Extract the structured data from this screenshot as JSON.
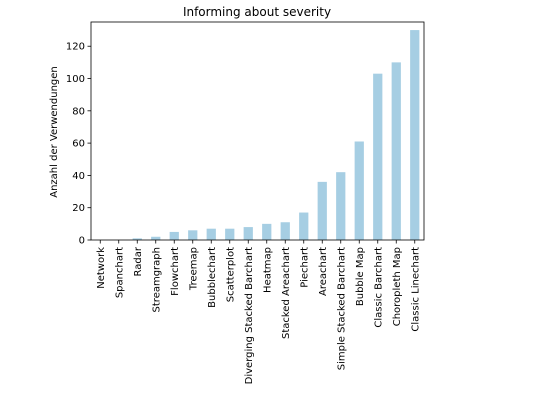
{
  "chart_data": {
    "type": "bar",
    "title": "Informing about severity",
    "xlabel": "",
    "ylabel": "Anzahl der Verwendungen",
    "ylim": [
      0,
      135
    ],
    "yticks": [
      0,
      20,
      40,
      60,
      80,
      100,
      120
    ],
    "grid": false,
    "bar_color": "#a6cee3",
    "categories": [
      "Network",
      "Spanchart",
      "Radar",
      "Streamgraph",
      "Flowchart",
      "Treemap",
      "Bubblechart",
      "Scatterplot",
      "Diverging Stacked Barchart",
      "Heatmap",
      "Stacked Areachart",
      "Piechart",
      "Areachart",
      "Simple Stacked Barchart",
      "Bubble Map",
      "Classic Barchart",
      "Choropleth Map",
      "Classic Linechart"
    ],
    "values": [
      0,
      0,
      1,
      2,
      5,
      6,
      7,
      7,
      8,
      10,
      11,
      17,
      36,
      42,
      61,
      103,
      110,
      130
    ]
  }
}
